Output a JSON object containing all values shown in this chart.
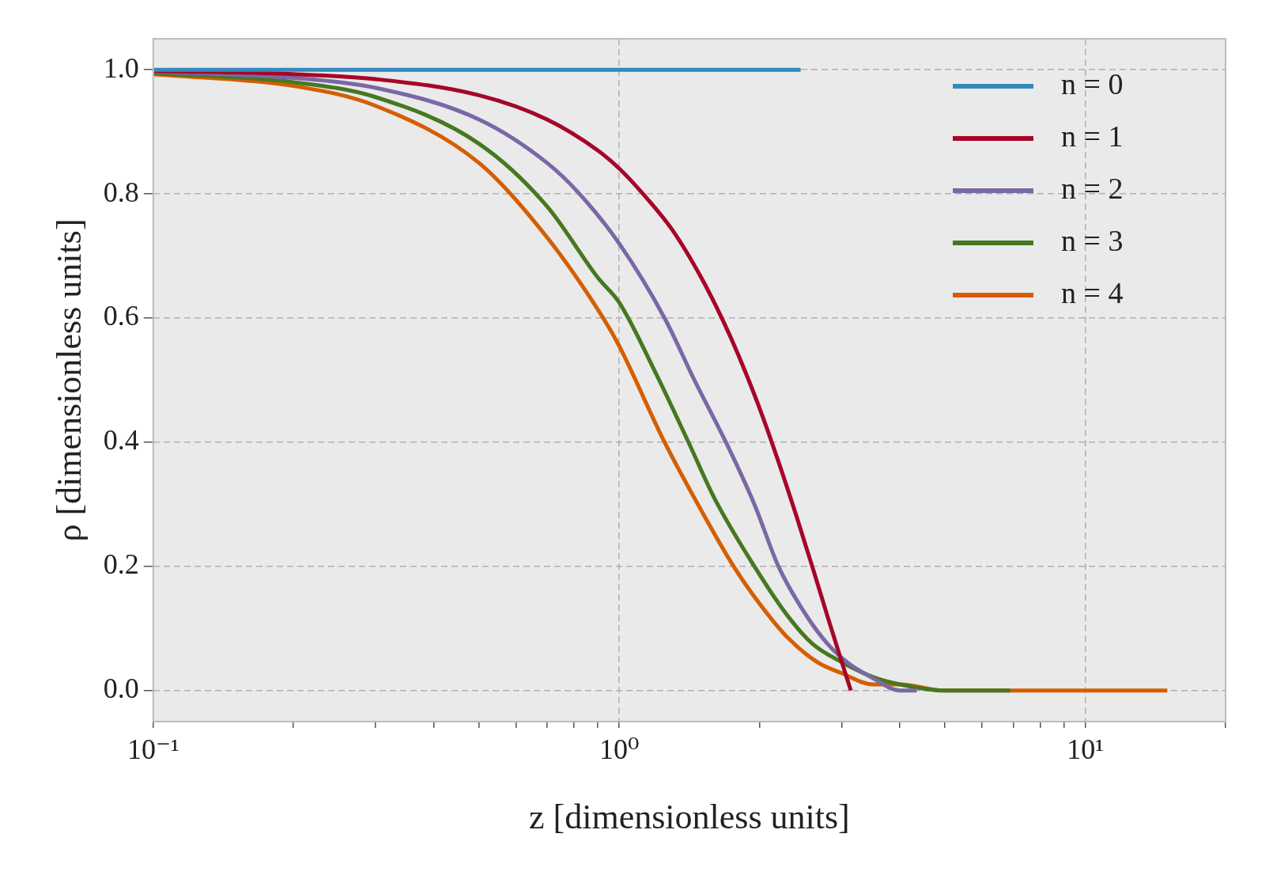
{
  "chart_data": {
    "type": "line",
    "xlabel": "z [dimensionless units]",
    "ylabel": "ρ [dimensionless units]",
    "log": "x",
    "xlim": [
      0.1,
      20
    ],
    "ylim": [
      -0.05,
      1.05
    ],
    "xticks": [
      {
        "value": 0.1,
        "label": "10⁻¹"
      },
      {
        "value": 0.2,
        "label": null
      },
      {
        "value": 0.3,
        "label": null
      },
      {
        "value": 0.4,
        "label": null
      },
      {
        "value": 0.5,
        "label": null
      },
      {
        "value": 0.6,
        "label": null
      },
      {
        "value": 0.7,
        "label": null
      },
      {
        "value": 0.8,
        "label": null
      },
      {
        "value": 0.9,
        "label": null
      },
      {
        "value": 1,
        "label": "10⁰"
      },
      {
        "value": 2,
        "label": null
      },
      {
        "value": 3,
        "label": null
      },
      {
        "value": 4,
        "label": null
      },
      {
        "value": 5,
        "label": null
      },
      {
        "value": 6,
        "label": null
      },
      {
        "value": 7,
        "label": null
      },
      {
        "value": 8,
        "label": null
      },
      {
        "value": 9,
        "label": null
      },
      {
        "value": 10,
        "label": "10¹"
      },
      {
        "value": 20,
        "label": null
      }
    ],
    "yticks": [
      {
        "value": 0,
        "label": "0.0"
      },
      {
        "value": 0.2,
        "label": "0.2"
      },
      {
        "value": 0.4,
        "label": "0.4"
      },
      {
        "value": 0.6,
        "label": "0.6"
      },
      {
        "value": 0.8,
        "label": "0.8"
      },
      {
        "value": 1,
        "label": "1.0"
      }
    ],
    "grid": true,
    "legend": "top right",
    "marker": "none",
    "line_style": "solid",
    "series": [
      {
        "name": "n = 0",
        "color": "#348abd",
        "x": [
          0.1,
          2.45
        ],
        "values": [
          1,
          1
        ]
      },
      {
        "name": "n = 1",
        "color": "#a60628",
        "x": [
          0.1,
          0.2,
          0.3,
          0.5,
          0.7,
          0.9,
          1,
          1.125,
          1.3,
          1.5,
          1.667,
          1.8,
          2,
          2.2,
          2.4,
          2.6,
          2.8,
          3,
          3.14
        ],
        "values": [
          0.998,
          0.993,
          0.985,
          0.959,
          0.92,
          0.87,
          0.841,
          0.8,
          0.742,
          0.665,
          0.597,
          0.541,
          0.455,
          0.367,
          0.281,
          0.198,
          0.119,
          0.047,
          0
        ]
      },
      {
        "name": "n = 2",
        "color": "#7a68a6",
        "x": [
          0.1,
          0.2,
          0.3,
          0.5,
          0.7,
          0.822,
          1,
          1.251,
          1.45,
          1.694,
          1.95,
          2.196,
          2.5,
          2.8,
          3.09,
          3.5,
          4,
          4.35
        ],
        "values": [
          0.997,
          0.987,
          0.971,
          0.92,
          0.85,
          0.8,
          0.72,
          0.6,
          0.5,
          0.4,
          0.3,
          0.2,
          0.125,
          0.075,
          0.045,
          0.02,
          0,
          0
        ]
      },
      {
        "name": "n = 3",
        "color": "#467821",
        "x": [
          0.1,
          0.2,
          0.3,
          0.5,
          0.7,
          0.9,
          1,
          1.2,
          1.408,
          1.6,
          1.95,
          2.3,
          2.6,
          3,
          3.5,
          4,
          5,
          6.9
        ],
        "values": [
          0.995,
          0.98,
          0.956,
          0.881,
          0.78,
          0.665,
          0.625,
          0.51,
          0.4,
          0.31,
          0.2,
          0.12,
          0.075,
          0.046,
          0.022,
          0.01,
          0,
          0
        ]
      },
      {
        "name": "n = 4",
        "color": "#d55e00",
        "x": [
          0.1,
          0.2,
          0.3,
          0.5,
          0.7,
          0.924,
          1,
          1.251,
          1.5,
          1.76,
          2,
          2.3,
          2.67,
          3,
          3.5,
          4,
          5,
          15
        ],
        "values": [
          0.993,
          0.974,
          0.942,
          0.85,
          0.73,
          0.6,
          0.555,
          0.4,
          0.29,
          0.2,
          0.14,
          0.085,
          0.045,
          0.028,
          0.01,
          0.01,
          0,
          0
        ]
      }
    ]
  }
}
